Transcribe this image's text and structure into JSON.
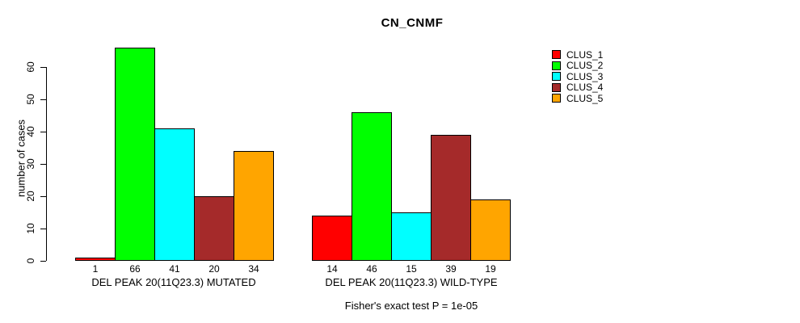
{
  "chart_data": {
    "type": "bar",
    "title": "CN_CNMF",
    "xlabel": "",
    "ylabel": "number of cases",
    "ylim": [
      0,
      66
    ],
    "yticks": [
      0,
      10,
      20,
      30,
      40,
      50,
      60
    ],
    "grid": false,
    "legend_position": "right",
    "series": [
      "CLUS_1",
      "CLUS_2",
      "CLUS_3",
      "CLUS_4",
      "CLUS_5"
    ],
    "series_colors": [
      "#FF0000",
      "#00FF00",
      "#00FFFF",
      "#A52A2A",
      "#FFA500"
    ],
    "groups": [
      {
        "label": "DEL PEAK 20(11Q23.3) MUTATED",
        "values": [
          1,
          66,
          41,
          20,
          34
        ]
      },
      {
        "label": "DEL PEAK 20(11Q23.3) WILD-TYPE",
        "values": [
          14,
          46,
          15,
          39,
          19
        ]
      }
    ],
    "bar_value_labels": [
      [
        "1",
        "66",
        "41",
        "20",
        "34"
      ],
      [
        "14",
        "46",
        "15",
        "39",
        "19"
      ]
    ],
    "annotation": "Fisher's exact test P = 1e-05"
  },
  "legend": {
    "items": [
      {
        "label": "CLUS_1",
        "color": "#FF0000"
      },
      {
        "label": "CLUS_2",
        "color": "#00FF00"
      },
      {
        "label": "CLUS_3",
        "color": "#00FFFF"
      },
      {
        "label": "CLUS_4",
        "color": "#A52A2A"
      },
      {
        "label": "CLUS_5",
        "color": "#FFA500"
      }
    ]
  },
  "colors": {
    "background": "#FFFFFF",
    "axis": "#000000",
    "text": "#000000"
  }
}
